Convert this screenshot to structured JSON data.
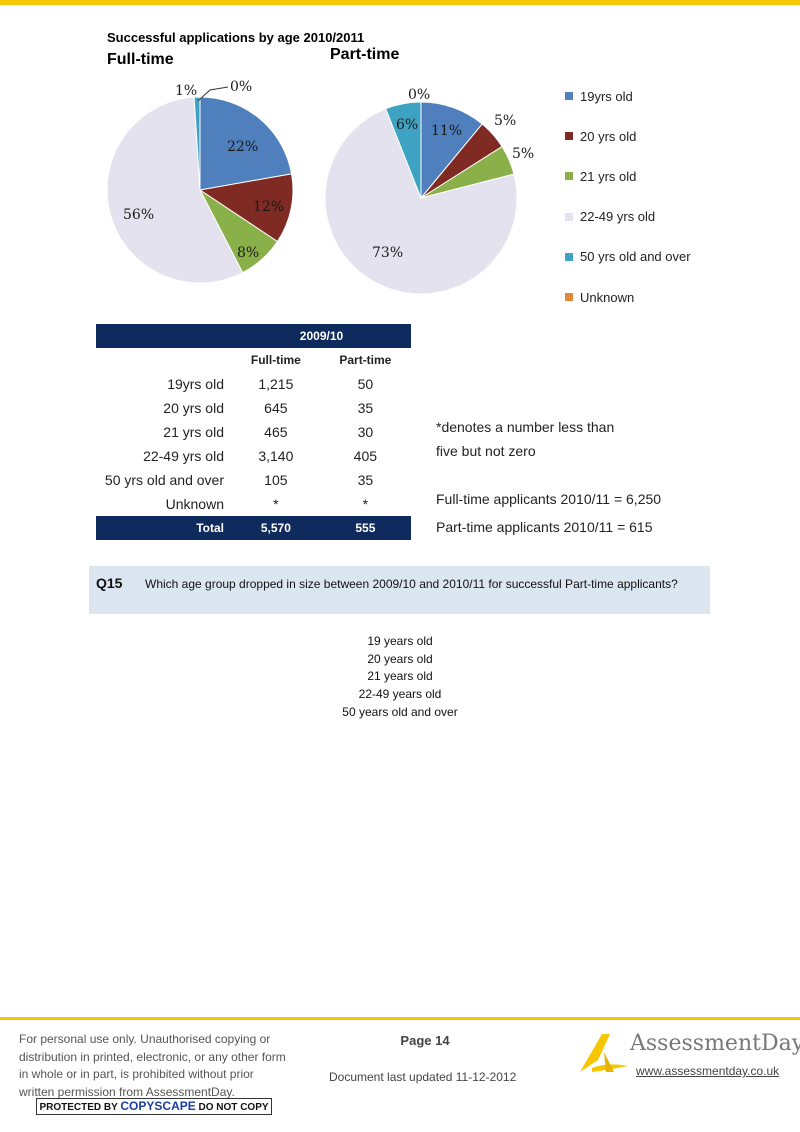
{
  "chart_data": [
    {
      "type": "pie",
      "title": "Successful applications by age  2010/2011",
      "subtitle": "Full-time",
      "categories": [
        "19yrs old",
        "20 yrs old",
        "21 yrs old",
        "22-49 yrs old",
        "50 yrs old and over",
        "Unknown"
      ],
      "values": [
        22,
        12,
        8,
        56,
        1,
        0
      ],
      "value_labels": [
        "22%",
        "12%",
        "8%",
        "56%",
        "1%",
        "0%"
      ],
      "legend": "right"
    },
    {
      "type": "pie",
      "subtitle": "Part-time",
      "categories": [
        "19yrs old",
        "20 yrs old",
        "21 yrs old",
        "22-49 yrs old",
        "50 yrs old and over",
        "Unknown"
      ],
      "values": [
        11,
        5,
        5,
        73,
        6,
        0
      ],
      "value_labels": [
        "11%",
        "5%",
        "5%",
        "73%",
        "6%",
        "0%"
      ],
      "legend": "right"
    }
  ],
  "legend": {
    "items": [
      {
        "label": "19yrs old",
        "color": "#4f7fbc"
      },
      {
        "label": "20 yrs old",
        "color": "#7f2a22"
      },
      {
        "label": "21 yrs old",
        "color": "#8ab04a"
      },
      {
        "label": "22-49 yrs old",
        "color": "#e4e2ee"
      },
      {
        "label": "50 yrs old and over",
        "color": "#3ea2c2"
      },
      {
        "label": "Unknown",
        "color": "#e0883a"
      }
    ]
  },
  "table": {
    "period": "2009/10",
    "col_full": "Full-time",
    "col_part": "Part-time",
    "rows": [
      {
        "label": "19yrs old",
        "full": "1,215",
        "part": "50"
      },
      {
        "label": "20 yrs old",
        "full": "645",
        "part": "35"
      },
      {
        "label": "21 yrs old",
        "full": "465",
        "part": "30"
      },
      {
        "label": "22-49 yrs old",
        "full": "3,140",
        "part": "405"
      },
      {
        "label": "50 yrs old and over",
        "full": "105",
        "part": "35"
      },
      {
        "label": "Unknown",
        "full": "*",
        "part": "*"
      }
    ],
    "total_label": "Total",
    "total_full": "5,570",
    "total_part": "555"
  },
  "notes": {
    "line1": "*denotes a number less than",
    "line2": "five but not zero",
    "full_total": "Full-time applicants 2010/11 = 6,250",
    "part_total": "Part-time applicants 2010/11 = 615"
  },
  "question": {
    "number": "Q15",
    "text": "Which age group dropped in size between 2009/10 and 2010/11 for successful Part-time applicants?",
    "options": [
      "19 years old",
      "20 years old",
      "21 years old",
      "22-49 years old",
      "50 years old and over"
    ]
  },
  "footer": {
    "disclaimer": "For personal use only. Unauthorised copying or distribution in printed, electronic, or any other form in whole or in part, is prohibited without prior written permission from AssessmentDay.",
    "copyscape_pre": "PROTECTED BY",
    "copyscape_brand": "COPYSCAPE",
    "copyscape_post": "DO NOT COPY",
    "page": "Page 14",
    "updated": "Document last updated 11-12-2012",
    "logo_text": "AssessmentDay",
    "url": "www.assessmentday.co.uk",
    "accent": "#f6c600"
  }
}
